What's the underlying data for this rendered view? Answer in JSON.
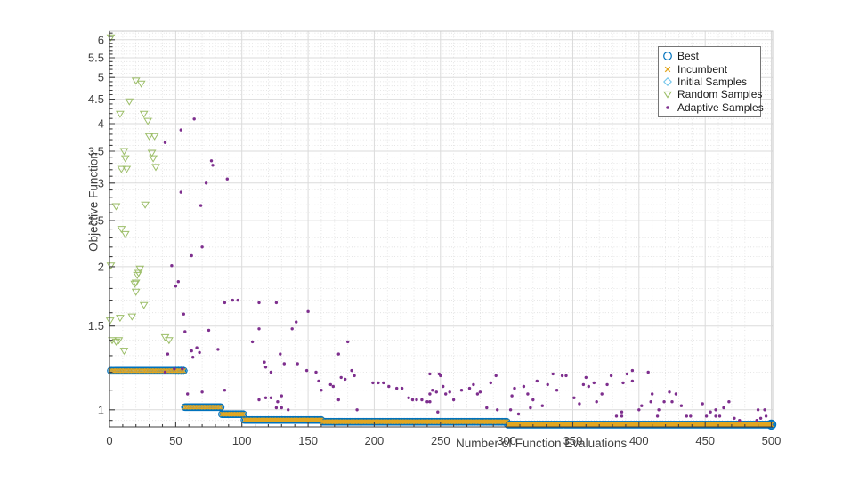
{
  "chart_data": {
    "type": "scatter",
    "title": "",
    "xlabel": "Number of Function Evaluations",
    "ylabel": "Objective Function",
    "x_scale": "linear",
    "y_scale": "log",
    "xlim": [
      0,
      501
    ],
    "ylim": [
      0.9207,
      6.26
    ],
    "x_ticks": [
      0,
      50,
      100,
      150,
      200,
      250,
      300,
      350,
      400,
      450,
      500
    ],
    "x_tick_labels": [
      "0",
      "50",
      "100",
      "150",
      "200",
      "250",
      "300",
      "350",
      "400",
      "450",
      "500"
    ],
    "x_minor_step": 10,
    "y_ticks": [
      1,
      1.5,
      2,
      2.5,
      3,
      3.5,
      4,
      4.5,
      5,
      5.5,
      6
    ],
    "y_tick_labels": [
      "1",
      "1.5",
      "2",
      "2.5",
      "3",
      "3.5",
      "4",
      "4.5",
      "5",
      "5.5",
      "6"
    ],
    "y_minor_step": 0.1,
    "grid": {
      "major": true,
      "minor": true,
      "major_color": "#dbdbdb",
      "minor_color": "#dedede"
    },
    "colors": {
      "best": "#0072BD",
      "incumbent": "#E2A620",
      "initial_samples": "#74C6EA",
      "random_samples": "#9CBE68",
      "adaptive_samples": "#7E2F8E",
      "axis": "#3f3f3f",
      "tick_label": "#404040"
    },
    "legend": {
      "position": "northeast",
      "entries": [
        {
          "label": "Best",
          "marker": "circle",
          "color": "#0072BD"
        },
        {
          "label": "Incumbent",
          "marker": "x",
          "color": "#E2A620"
        },
        {
          "label": "Initial Samples",
          "marker": "diamond",
          "color": "#74C6EA"
        },
        {
          "label": "Random Samples",
          "marker": "triangle-down",
          "color": "#9CBE68"
        },
        {
          "label": "Adaptive Samples",
          "marker": "dot",
          "color": "#7E2F8E"
        }
      ]
    },
    "series": {
      "best": {
        "marker": "circle",
        "plateaus": [
          {
            "from": 1,
            "to": 56,
            "value": 1.209
          },
          {
            "from": 57,
            "to": 84,
            "value": 1.013
          },
          {
            "from": 85,
            "to": 101,
            "value": 0.979
          },
          {
            "from": 102,
            "to": 160,
            "value": 0.952
          },
          {
            "from": 161,
            "to": 300,
            "value": 0.944
          },
          {
            "from": 301,
            "to": 500,
            "value": 0.931
          }
        ],
        "final_value": 0.931,
        "final_eval": 500
      },
      "incumbent": {
        "marker": "x",
        "follows": "best"
      },
      "initial_samples": {
        "marker": "diamond",
        "points": [
          [
            50,
            1.209
          ],
          [
            52,
            1.209
          ],
          [
            54,
            1.209
          ],
          [
            56,
            1.209
          ]
        ]
      },
      "random_samples": {
        "marker": "triangle-down",
        "points": [
          [
            1,
            6.07
          ],
          [
            20,
            4.92
          ],
          [
            24,
            4.85
          ],
          [
            15,
            4.45
          ],
          [
            8,
            4.19
          ],
          [
            26,
            4.19
          ],
          [
            29,
            4.05
          ],
          [
            30,
            3.76
          ],
          [
            34,
            3.76
          ],
          [
            11,
            3.5
          ],
          [
            32,
            3.47
          ],
          [
            12,
            3.38
          ],
          [
            33,
            3.38
          ],
          [
            9,
            3.21
          ],
          [
            13,
            3.21
          ],
          [
            35,
            3.24
          ],
          [
            5,
            2.68
          ],
          [
            27,
            2.7
          ],
          [
            9,
            2.4
          ],
          [
            12,
            2.34
          ],
          [
            1,
            2.01
          ],
          [
            23,
            1.98
          ],
          [
            22,
            1.94
          ],
          [
            21,
            1.92
          ],
          [
            20,
            1.85
          ],
          [
            19,
            1.84
          ],
          [
            20,
            1.77
          ],
          [
            26,
            1.66
          ],
          [
            17,
            1.57
          ],
          [
            8,
            1.56
          ],
          [
            0.5,
            1.54
          ],
          [
            2,
            1.4
          ],
          [
            5,
            1.39
          ],
          [
            7,
            1.4
          ],
          [
            42,
            1.42
          ],
          [
            45,
            1.4
          ],
          [
            11,
            1.33
          ]
        ]
      },
      "adaptive_samples": {
        "marker": "dot",
        "points": [
          [
            64,
            4.09
          ],
          [
            54,
            3.88
          ],
          [
            42,
            3.65
          ],
          [
            77,
            3.34
          ],
          [
            78,
            3.27
          ],
          [
            89,
            3.06
          ],
          [
            73,
            3.0
          ],
          [
            54,
            2.87
          ],
          [
            69,
            2.69
          ],
          [
            70,
            2.2
          ],
          [
            62,
            2.11
          ],
          [
            47,
            2.01
          ],
          [
            52,
            1.86
          ],
          [
            50,
            1.82
          ],
          [
            93,
            1.7
          ],
          [
            97,
            1.7
          ],
          [
            87,
            1.68
          ],
          [
            56,
            1.59
          ],
          [
            75,
            1.47
          ],
          [
            57,
            1.46
          ],
          [
            44,
            1.31
          ],
          [
            62,
            1.33
          ],
          [
            66,
            1.35
          ],
          [
            68,
            1.32
          ],
          [
            82,
            1.34
          ],
          [
            63,
            1.29
          ],
          [
            42,
            1.2
          ],
          [
            49,
            1.22
          ],
          [
            55,
            1.22
          ],
          [
            113,
            1.68
          ],
          [
            126,
            1.68
          ],
          [
            150,
            1.61
          ],
          [
            141,
            1.53
          ],
          [
            113,
            1.48
          ],
          [
            138,
            1.48
          ],
          [
            108,
            1.39
          ],
          [
            129,
            1.31
          ],
          [
            132,
            1.25
          ],
          [
            117,
            1.26
          ],
          [
            118,
            1.23
          ],
          [
            122,
            1.2
          ],
          [
            142,
            1.25
          ],
          [
            149,
            1.21
          ],
          [
            156,
            1.2
          ],
          [
            158,
            1.15
          ],
          [
            160,
            1.1
          ],
          [
            167,
            1.13
          ],
          [
            169,
            1.12
          ],
          [
            173,
            1.31
          ],
          [
            180,
            1.39
          ],
          [
            175,
            1.17
          ],
          [
            178,
            1.16
          ],
          [
            183,
            1.21
          ],
          [
            185,
            1.18
          ],
          [
            173,
            1.05
          ],
          [
            187,
            1.0
          ],
          [
            199,
            1.14
          ],
          [
            203,
            1.14
          ],
          [
            207,
            1.14
          ],
          [
            211,
            1.12
          ],
          [
            217,
            1.11
          ],
          [
            221,
            1.11
          ],
          [
            226,
            1.06
          ],
          [
            229,
            1.05
          ],
          [
            232,
            1.05
          ],
          [
            236,
            1.05
          ],
          [
            240,
            1.04
          ],
          [
            242,
            1.08
          ],
          [
            244,
            1.1
          ],
          [
            248,
            0.99
          ],
          [
            250,
            1.18
          ],
          [
            252,
            1.12
          ],
          [
            135,
            1.0
          ],
          [
            118,
            1.06
          ],
          [
            113,
            1.05
          ],
          [
            126,
            1.01
          ],
          [
            130,
            1.01
          ],
          [
            59,
            1.08
          ],
          [
            70,
            1.09
          ],
          [
            87,
            1.1
          ],
          [
            122,
            1.06
          ],
          [
            127,
            1.04
          ],
          [
            130,
            1.07
          ],
          [
            242,
            1.19
          ],
          [
            249,
            1.19
          ],
          [
            242,
            1.04
          ],
          [
            247,
            1.09
          ],
          [
            254,
            1.08
          ],
          [
            257,
            1.09
          ],
          [
            260,
            1.05
          ],
          [
            266,
            1.1
          ],
          [
            272,
            1.11
          ],
          [
            275,
            1.13
          ],
          [
            278,
            1.08
          ],
          [
            280,
            1.09
          ],
          [
            285,
            1.01
          ],
          [
            288,
            1.14
          ],
          [
            292,
            1.18
          ],
          [
            293,
            1.0
          ],
          [
            303,
            1.0
          ],
          [
            304,
            1.07
          ],
          [
            306,
            1.11
          ],
          [
            309,
            0.98
          ],
          [
            313,
            1.12
          ],
          [
            316,
            1.08
          ],
          [
            318,
            1.01
          ],
          [
            320,
            1.05
          ],
          [
            323,
            1.15
          ],
          [
            327,
            1.02
          ],
          [
            331,
            1.13
          ],
          [
            335,
            1.19
          ],
          [
            338,
            1.1
          ],
          [
            342,
            1.18
          ],
          [
            345,
            1.18
          ],
          [
            351,
            1.06
          ],
          [
            355,
            1.03
          ],
          [
            358,
            1.13
          ],
          [
            360,
            1.17
          ],
          [
            362,
            1.12
          ],
          [
            366,
            1.14
          ],
          [
            368,
            1.04
          ],
          [
            372,
            1.08
          ],
          [
            376,
            1.13
          ],
          [
            379,
            1.18
          ],
          [
            383,
            0.97
          ],
          [
            387,
            0.97
          ],
          [
            387,
            0.99
          ],
          [
            388,
            1.14
          ],
          [
            391,
            1.19
          ],
          [
            395,
            1.21
          ],
          [
            395,
            1.15
          ],
          [
            400,
            1.0
          ],
          [
            402,
            1.02
          ],
          [
            407,
            1.2
          ],
          [
            409,
            1.04
          ],
          [
            410,
            1.08
          ],
          [
            414,
            0.97
          ],
          [
            415,
            1.0
          ],
          [
            419,
            1.04
          ],
          [
            423,
            1.09
          ],
          [
            425,
            1.04
          ],
          [
            428,
            1.08
          ],
          [
            432,
            1.02
          ],
          [
            436,
            0.97
          ],
          [
            439,
            0.97
          ],
          [
            448,
            1.03
          ],
          [
            451,
            0.97
          ],
          [
            454,
            0.99
          ],
          [
            458,
            0.97
          ],
          [
            458,
            1.0
          ],
          [
            461,
            0.97
          ],
          [
            464,
            1.01
          ],
          [
            468,
            1.04
          ],
          [
            472,
            0.96
          ],
          [
            476,
            0.95
          ],
          [
            489,
            0.95
          ],
          [
            490,
            1.0
          ],
          [
            492,
            0.96
          ],
          [
            495,
            1.0
          ],
          [
            496,
            0.97
          ]
        ]
      }
    }
  }
}
